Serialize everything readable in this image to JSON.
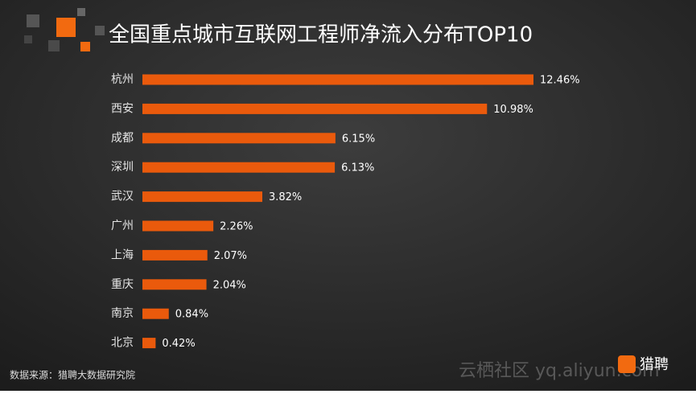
{
  "chart_data": {
    "type": "bar",
    "orientation": "horizontal",
    "title": "全国重点城市互联网工程师净流入分布TOP10",
    "categories": [
      "杭州",
      "西安",
      "成都",
      "深圳",
      "武汉",
      "广州",
      "上海",
      "重庆",
      "南京",
      "北京"
    ],
    "values": [
      12.46,
      10.98,
      6.15,
      6.13,
      3.82,
      2.26,
      2.07,
      2.04,
      0.84,
      0.42
    ],
    "value_labels": [
      "12.46%",
      "10.98%",
      "6.15%",
      "6.13%",
      "3.82%",
      "2.26%",
      "2.07%",
      "2.04%",
      "0.84%",
      "0.42%"
    ],
    "color": "#ea5a0c",
    "source": "数据来源：猎聘大数据研究院",
    "watermark": "云栖社区 yq.aliyun.com",
    "logo": "猎聘"
  }
}
